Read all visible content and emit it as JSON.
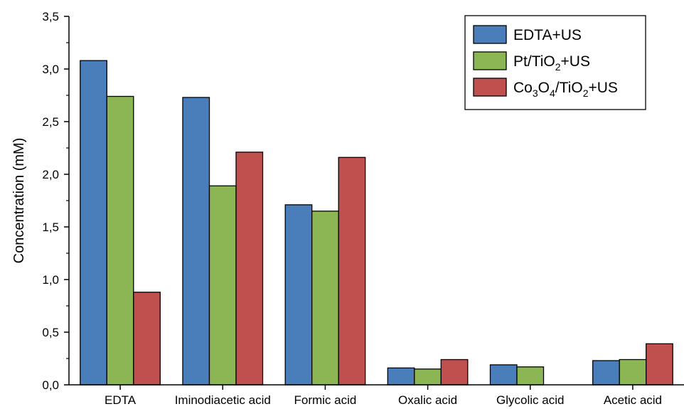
{
  "chart_data": {
    "type": "bar",
    "categories": [
      "EDTA",
      "Iminodiacetic acid",
      "Formic acid",
      "Oxalic acid",
      "Glycolic acid",
      "Acetic acid"
    ],
    "series": [
      {
        "name": "EDTA+US",
        "color": "#4a7ebb",
        "values": [
          3.08,
          2.73,
          1.71,
          0.16,
          0.19,
          0.23
        ]
      },
      {
        "name": "Pt/TiO2+US",
        "color": "#8cb654",
        "values": [
          2.74,
          1.89,
          1.65,
          0.15,
          0.17,
          0.24
        ]
      },
      {
        "name": "Co3O4/TiO2+US",
        "color": "#c0504d",
        "values": [
          0.88,
          2.21,
          2.16,
          0.24,
          0.0,
          0.39
        ]
      }
    ],
    "legend_rich": [
      [
        [
          "EDTA+US",
          "n"
        ]
      ],
      [
        [
          "Pt/TiO",
          "n"
        ],
        [
          "2",
          "sub"
        ],
        [
          "+US",
          "n"
        ]
      ],
      [
        [
          "Co",
          "n"
        ],
        [
          "3",
          "sub"
        ],
        [
          "O",
          "n"
        ],
        [
          "4",
          "sub"
        ],
        [
          "/TiO",
          "n"
        ],
        [
          "2",
          "sub"
        ],
        [
          "+US",
          "n"
        ]
      ]
    ],
    "ylabel": "Concentration (mM)",
    "xlabel": "",
    "ylim": [
      0,
      3.5
    ],
    "yticks": [
      "0,0",
      "0,5",
      "1,0",
      "1,5",
      "2,0",
      "2,5",
      "3,0",
      "3,5"
    ],
    "grid": false,
    "legend_position": "top-right"
  }
}
